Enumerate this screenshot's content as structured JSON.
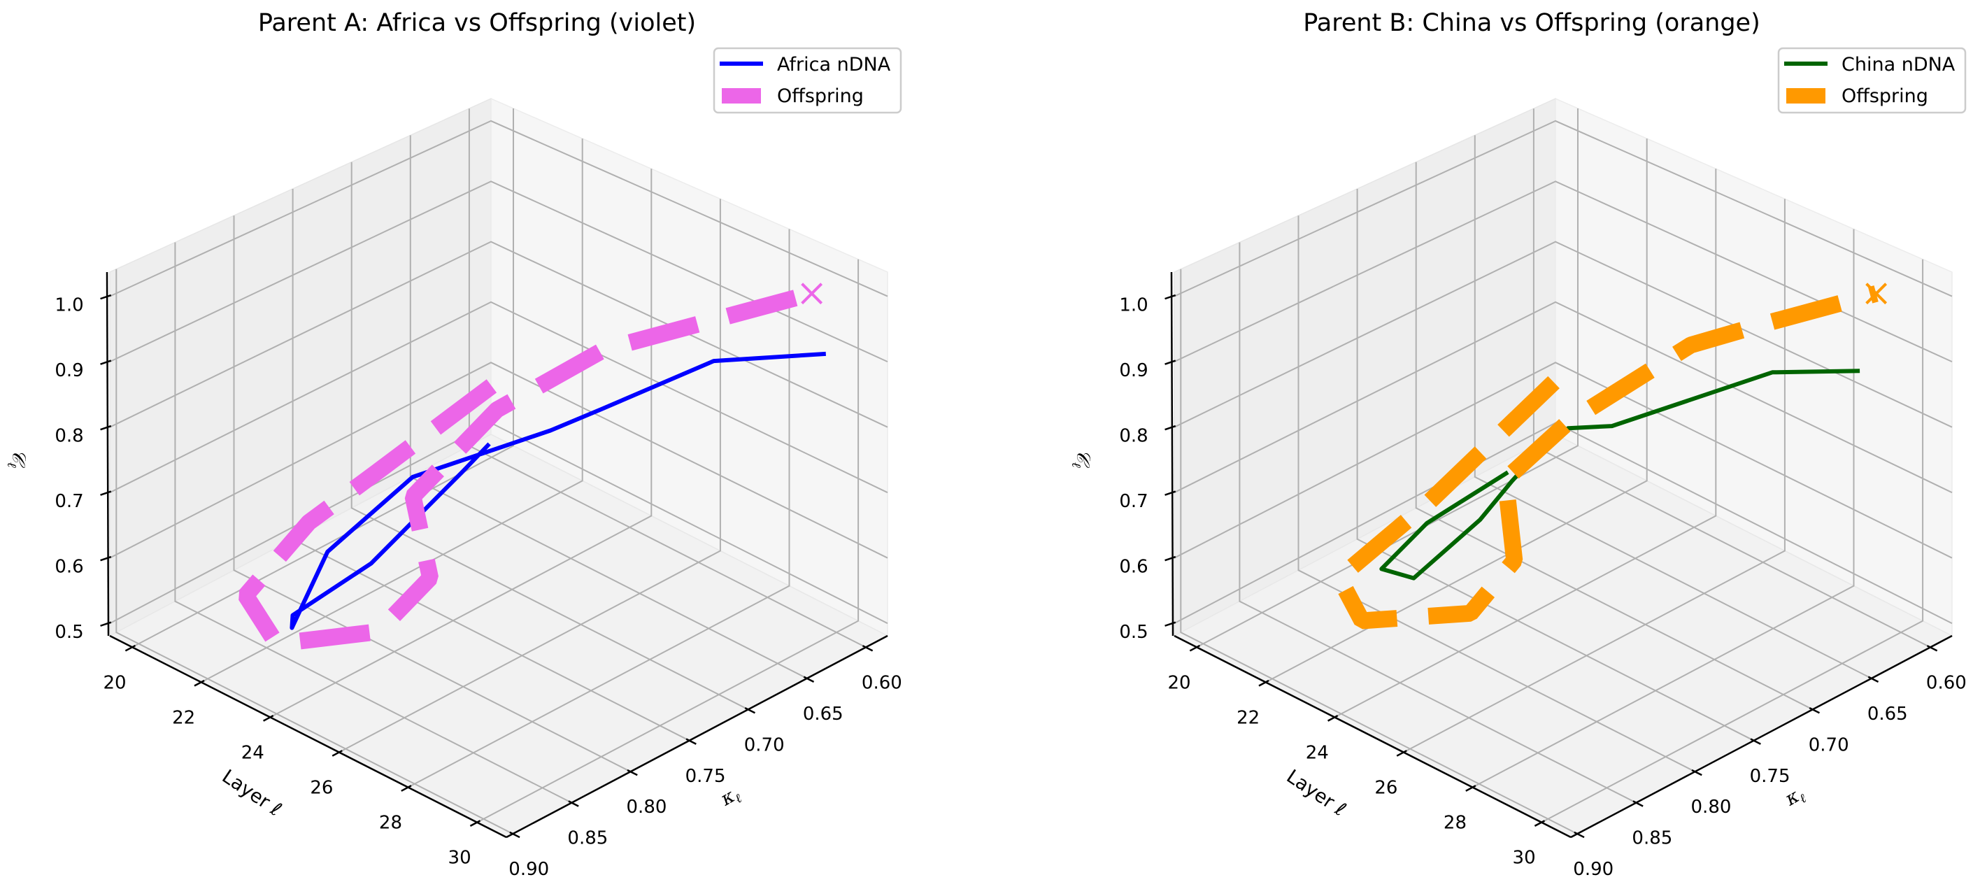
{
  "chart_data": [
    {
      "type": "line3d",
      "title": "Parent A: Africa  vs Offspring (violet)",
      "xlabel": "Layer ℓ",
      "ylabel": {
        "base": "κ",
        "sub": "ℓ"
      },
      "zlabel": {
        "base": "𝒞",
        "sub": "ℓ"
      },
      "xlim": [
        19.35,
        30.85
      ],
      "ylim": [
        0.5815,
        0.9055
      ],
      "zlim": [
        0.481,
        1.037
      ],
      "xticks": [
        20,
        22,
        24,
        26,
        28,
        30
      ],
      "xtick_labels": [
        "20",
        "22",
        "24",
        "26",
        "28",
        "30"
      ],
      "yticks": [
        0.6,
        0.65,
        0.7,
        0.75,
        0.8,
        0.85,
        0.9
      ],
      "ytick_labels": [
        "0.60",
        "0.65",
        "0.70",
        "0.75",
        "0.80",
        "0.85",
        "0.90"
      ],
      "zticks": [
        0.5,
        0.6,
        0.7,
        0.8,
        0.9,
        1.0
      ],
      "ztick_labels": [
        "0.5",
        "0.6",
        "0.7",
        "0.8",
        "0.9",
        "1.0"
      ],
      "grid": true,
      "legend": "top-right",
      "series": [
        {
          "name": "Africa nDNA",
          "color": "#0000ff",
          "style": "solid",
          "x": [
            20,
            21,
            22,
            23,
            24,
            25,
            26,
            27,
            28,
            29,
            30
          ],
          "y": [
            0.602,
            0.654,
            0.761,
            0.857,
            0.887,
            0.886,
            0.843,
            0.755,
            0.741,
            0.675,
            0.609
          ],
          "z": [
            0.505,
            0.54,
            0.526,
            0.563,
            0.597,
            0.734,
            0.832,
            0.851,
            0.895,
            0.936,
            0.915
          ]
        },
        {
          "name": "Offspring",
          "color": "#ec66e8",
          "style": "dashed",
          "end_marker": "x",
          "x": [
            20,
            21,
            22,
            23,
            24,
            25,
            26,
            27,
            28,
            29,
            30
          ],
          "y": [
            0.6,
            0.726,
            0.814,
            0.897,
            0.9,
            0.843,
            0.828,
            0.872,
            0.83,
            0.768,
            0.621
          ],
          "z": [
            0.598,
            0.61,
            0.639,
            0.629,
            0.585,
            0.577,
            0.669,
            0.851,
            0.967,
            1.029,
            1.017
          ]
        }
      ]
    },
    {
      "type": "line3d",
      "title": "Parent B: China  vs Offspring (orange)",
      "xlabel": "Layer ℓ",
      "ylabel": {
        "base": "κ",
        "sub": "ℓ"
      },
      "zlabel": {
        "base": "𝒞",
        "sub": "ℓ"
      },
      "xlim": [
        19.35,
        30.85
      ],
      "ylim": [
        0.5815,
        0.9055
      ],
      "zlim": [
        0.481,
        1.037
      ],
      "xticks": [
        20,
        22,
        24,
        26,
        28,
        30
      ],
      "xtick_labels": [
        "20",
        "22",
        "24",
        "26",
        "28",
        "30"
      ],
      "yticks": [
        0.6,
        0.65,
        0.7,
        0.75,
        0.8,
        0.85,
        0.9
      ],
      "ytick_labels": [
        "0.60",
        "0.65",
        "0.70",
        "0.75",
        "0.80",
        "0.85",
        "0.90"
      ],
      "zticks": [
        0.5,
        0.6,
        0.7,
        0.8,
        0.9,
        1.0
      ],
      "ztick_labels": [
        "0.5",
        "0.6",
        "0.7",
        "0.8",
        "0.9",
        "1.0"
      ],
      "grid": true,
      "legend": "top-right",
      "series": [
        {
          "name": "China nDNA",
          "color": "#006400",
          "style": "solid",
          "x": [
            20,
            21,
            22,
            23,
            24,
            25,
            26,
            27,
            28,
            29,
            30
          ],
          "y": [
            0.641,
            0.739,
            0.807,
            0.809,
            0.782,
            0.784,
            0.788,
            0.795,
            0.787,
            0.68,
            0.635
          ],
          "z": [
            0.498,
            0.541,
            0.561,
            0.575,
            0.665,
            0.751,
            0.828,
            0.888,
            0.908,
            0.923,
            0.911
          ]
        },
        {
          "name": "Offspring",
          "color": "#ff9900",
          "style": "dashed",
          "end_marker": "x",
          "x": [
            20,
            21,
            22,
            23,
            24,
            25,
            26,
            27,
            28,
            29,
            30
          ],
          "y": [
            0.602,
            0.738,
            0.843,
            0.853,
            0.79,
            0.782,
            0.819,
            0.795,
            0.72,
            0.69,
            0.621
          ],
          "z": [
            0.606,
            0.572,
            0.581,
            0.551,
            0.53,
            0.629,
            0.808,
            0.897,
            0.974,
            1.003,
            1.017
          ]
        }
      ]
    }
  ]
}
